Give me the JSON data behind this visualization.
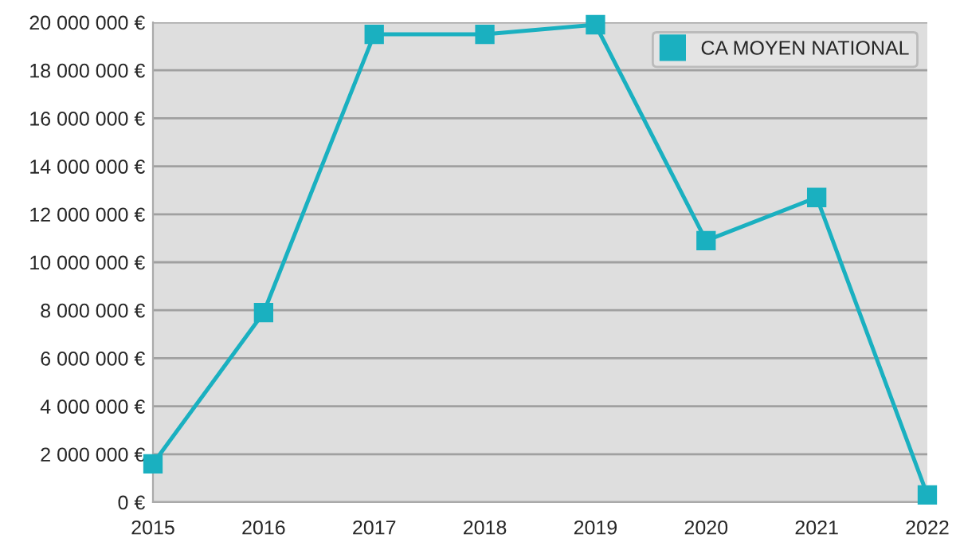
{
  "chart_data": {
    "type": "line",
    "categories": [
      "2015",
      "2016",
      "2017",
      "2018",
      "2019",
      "2020",
      "2021",
      "2022"
    ],
    "series": [
      {
        "name": "CA MOYEN NATIONAL",
        "color": "#1ab0c0",
        "values": [
          1600000,
          7900000,
          19500000,
          19500000,
          19900000,
          10900000,
          12700000,
          300000
        ]
      }
    ],
    "ylim": [
      0,
      20000000
    ],
    "yticks": [
      {
        "value": 0,
        "label": "0 €"
      },
      {
        "value": 2000000,
        "label": "2 000 000 €"
      },
      {
        "value": 4000000,
        "label": "4 000 000 €"
      },
      {
        "value": 6000000,
        "label": "6 000 000 €"
      },
      {
        "value": 8000000,
        "label": "8 000 000 €"
      },
      {
        "value": 10000000,
        "label": "10 000 000 €"
      },
      {
        "value": 12000000,
        "label": "12 000 000 €"
      },
      {
        "value": 14000000,
        "label": "14 000 000 €"
      },
      {
        "value": 16000000,
        "label": "16 000 000 €"
      },
      {
        "value": 18000000,
        "label": "18 000 000 €"
      },
      {
        "value": 20000000,
        "label": "20 000 000 €"
      }
    ],
    "grid": "y",
    "legend": "top right",
    "marker": "square",
    "line_style": "solid"
  }
}
